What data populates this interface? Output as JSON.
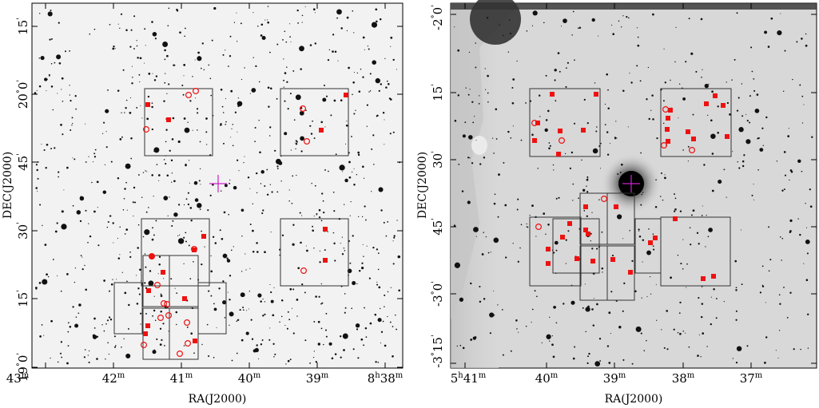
{
  "chart_data": [
    {
      "type": "scatter",
      "panel": "left",
      "xlabel": "RA(J2000)",
      "ylabel": "DEC(J2000)",
      "x_ticks": [
        {
          "main": "43",
          "sup": "m"
        },
        {
          "main": "42",
          "sup": "m"
        },
        {
          "main": "41",
          "sup": "m"
        },
        {
          "main": "40",
          "sup": "m"
        },
        {
          "main": "39",
          "sup": "m"
        },
        {
          "main": "8",
          "sup": "h",
          "extra": "38",
          "extra_sup": "m"
        }
      ],
      "y_ticks": [
        {
          "main": "19",
          "sup": "°",
          "extra": "0",
          "extra_sup": "'"
        },
        {
          "main": "15",
          "sup": "'"
        },
        {
          "main": "30",
          "sup": "'"
        },
        {
          "main": "45",
          "sup": "'"
        },
        {
          "main": "20",
          "sup": "°",
          "extra": "0",
          "extra_sup": "'"
        },
        {
          "main": "15",
          "sup": "'"
        }
      ],
      "filled_squares_count": 15,
      "open_circles_count": 17,
      "fields_count": 9
    },
    {
      "type": "scatter",
      "panel": "right",
      "xlabel": "RA(J2000)",
      "ylabel": "DEC(J2000)",
      "x_ticks": [
        {
          "main": "5",
          "sup": "h",
          "extra": "41",
          "extra_sup": "m"
        },
        {
          "main": "40",
          "sup": "m"
        },
        {
          "main": "39",
          "sup": "m"
        },
        {
          "main": "38",
          "sup": "m"
        },
        {
          "main": "37",
          "sup": "m"
        }
      ],
      "y_ticks": [
        {
          "main": "-3",
          "sup": "°",
          "extra": "15",
          "extra_sup": "'"
        },
        {
          "main": "-3",
          "sup": "°",
          "extra": "0",
          "extra_sup": "'"
        },
        {
          "main": "45",
          "sup": "'"
        },
        {
          "main": "30",
          "sup": "'"
        },
        {
          "main": "15",
          "sup": "'"
        },
        {
          "main": "-2",
          "sup": "°",
          "extra": "0",
          "extra_sup": "'"
        }
      ],
      "filled_squares_count": 34,
      "open_circles_count": 7,
      "fields_count": 9
    }
  ],
  "colors": {
    "marker": "#ee1111",
    "center_cross": "#cc22cc",
    "field_box": "#333333",
    "sky_left": "#f2f2f2",
    "sky_right": "#d8d8d8"
  },
  "marker_legend": {
    "filled_square": "filled-square-marker",
    "open_circle": "open-circle-marker"
  }
}
